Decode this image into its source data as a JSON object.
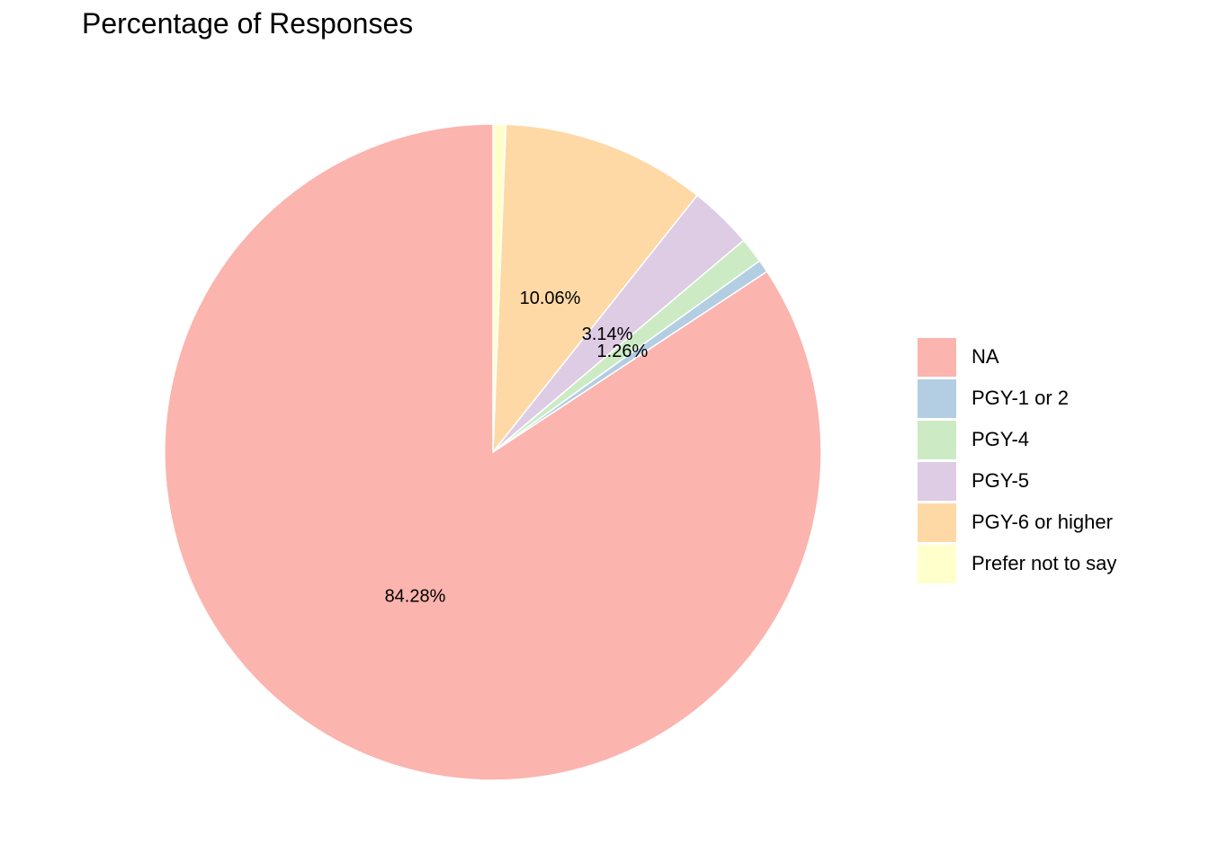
{
  "chart_data": {
    "type": "pie",
    "title": "Percentage of Responses",
    "start_angle": "12 o'clock",
    "direction": "clockwise",
    "slices": [
      {
        "label": "Prefer not to say",
        "value": 0.63,
        "color": "#FFFFCC",
        "data_label": ""
      },
      {
        "label": "PGY-6 or higher",
        "value": 10.06,
        "color": "#FED9A6",
        "data_label": "10.06%"
      },
      {
        "label": "PGY-5",
        "value": 3.14,
        "color": "#DECBE4",
        "data_label": "3.14%"
      },
      {
        "label": "PGY-4",
        "value": 1.26,
        "color": "#CCEBC5",
        "data_label": "1.26%"
      },
      {
        "label": "PGY-1 or 2",
        "value": 0.63,
        "color": "#B3CDE3",
        "data_label": ""
      },
      {
        "label": "NA",
        "value": 84.28,
        "color": "#FBB4AE",
        "data_label": "84.28%"
      }
    ],
    "legend": {
      "position": "right",
      "entries": [
        {
          "label": "NA",
          "color": "#FBB4AE"
        },
        {
          "label": "PGY-1 or 2",
          "color": "#B3CDE3"
        },
        {
          "label": "PGY-4",
          "color": "#CCEBC5"
        },
        {
          "label": "PGY-5",
          "color": "#DECBE4"
        },
        {
          "label": "PGY-6 or higher",
          "color": "#FED9A6"
        },
        {
          "label": "Prefer not to say",
          "color": "#FFFFCC"
        }
      ]
    }
  }
}
